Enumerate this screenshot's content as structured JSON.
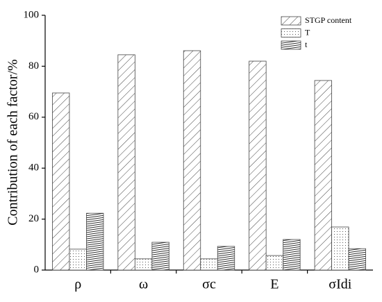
{
  "chart_data": {
    "type": "bar",
    "y_label": "Contribution of each factor/%",
    "categories": [
      "ρ",
      "ω",
      "σc",
      "E",
      "σIdi"
    ],
    "series": [
      {
        "name": "STGP content",
        "pattern": "diagonal",
        "color": "#444444",
        "values": [
          69.5,
          84.5,
          86.1,
          82.0,
          74.4
        ]
      },
      {
        "name": "T",
        "pattern": "dots",
        "color": "#444444",
        "values": [
          8.2,
          4.4,
          4.4,
          5.7,
          16.9
        ]
      },
      {
        "name": "t",
        "pattern": "horizontal",
        "color": "#444444",
        "values": [
          22.3,
          10.9,
          9.3,
          12.0,
          8.4
        ]
      }
    ],
    "ylim": [
      0,
      100
    ],
    "yticks": [
      0,
      20,
      40,
      60,
      80,
      100
    ],
    "grid": false,
    "legend": "top-right"
  }
}
